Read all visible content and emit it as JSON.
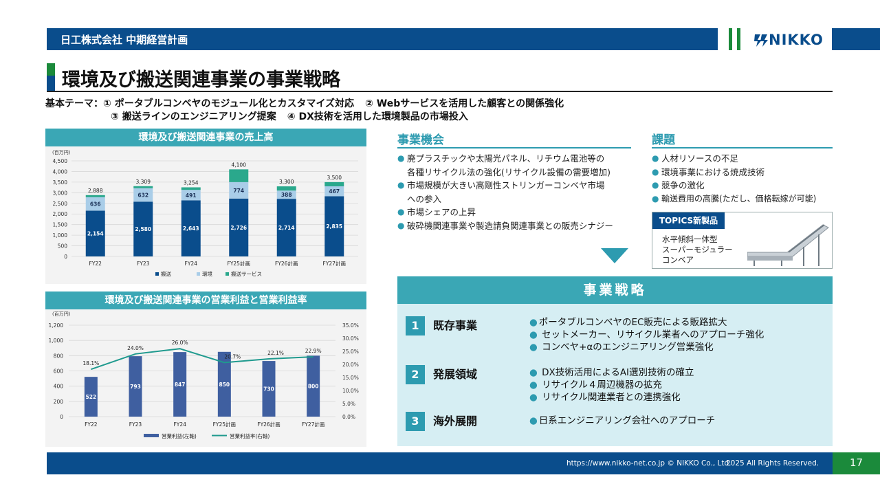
{
  "header": {
    "company": "日工株式会社 中期経営計画",
    "logo_text": "NIKKO"
  },
  "page": {
    "title": "環境及び搬送関連事業の事業戦略"
  },
  "theme": {
    "label": "基本テーマ：",
    "items": [
      "① ポータブルコンベヤのモジュール化とカスタマイズ対応",
      "② Webサービスを活用した顧客との関係強化",
      "③ 搬送ラインのエンジニアリング提案",
      "④ DX技術を活用した環境製品の市場投入"
    ]
  },
  "sales_panel": {
    "title": "環境及び搬送関連事業の売上高",
    "chart_data": {
      "type": "bar",
      "stacked": true,
      "unit_label": "(百万円)",
      "categories": [
        "FY22",
        "FY23",
        "FY24",
        "FY25計画",
        "FY26計画",
        "FY27計画"
      ],
      "series": [
        {
          "name": "搬送",
          "color": "#0a4d8c",
          "values": [
            2154,
            2580,
            2643,
            2726,
            2714,
            2835
          ]
        },
        {
          "name": "環境",
          "color": "#a9cde8",
          "values": [
            636,
            632,
            491,
            774,
            388,
            467
          ]
        },
        {
          "name": "搬送サービス",
          "color": "#2aa88c",
          "values": [
            98,
            97,
            120,
            600,
            198,
            198
          ]
        }
      ],
      "series_labels": [
        [
          "2,154",
          "2,580",
          "2,643",
          "2,726",
          "2,714",
          "2,835"
        ],
        [
          "636",
          "632",
          "491",
          "774",
          "388",
          "467"
        ],
        []
      ],
      "totals": [
        "2,888",
        "3,309",
        "3,254",
        "4,100",
        "3,300",
        "3,500"
      ],
      "ylim": [
        0,
        4500
      ],
      "yticks": [
        "0",
        "500",
        "1,000",
        "1,500",
        "2,000",
        "2,500",
        "3,000",
        "3,500",
        "4,000",
        "4,500"
      ],
      "grid": true,
      "legend_position": "bottom"
    }
  },
  "profit_panel": {
    "title": "環境及び搬送関連事業の営業利益と営業利益率",
    "chart_data": {
      "type": "bar",
      "unit_label": "(百万円)",
      "categories": [
        "FY22",
        "FY23",
        "FY24",
        "FY25計画",
        "FY26計画",
        "FY27計画"
      ],
      "series": [
        {
          "name": "営業利益(左軸)",
          "type": "bar",
          "color": "#3f5fa0",
          "values": [
            522,
            793,
            847,
            850,
            730,
            800
          ]
        },
        {
          "name": "営業利益率(右軸)",
          "type": "line",
          "color": "#1f9a8e",
          "values": [
            18.1,
            24.0,
            26.0,
            20.7,
            22.1,
            22.9
          ]
        }
      ],
      "bar_labels": [
        "522",
        "793",
        "847",
        "850",
        "730",
        "800"
      ],
      "line_labels": [
        "18.1%",
        "24.0%",
        "26.0%",
        "20.7%",
        "22.1%",
        "22.9%"
      ],
      "ylim": [
        0,
        1200
      ],
      "yticks": [
        "0",
        "200",
        "400",
        "600",
        "800",
        "1,000",
        "1,200"
      ],
      "y2lim": [
        0,
        35
      ],
      "y2ticks": [
        "0.0%",
        "5.0%",
        "10.0%",
        "15.0%",
        "20.0%",
        "25.0%",
        "30.0%",
        "35.0%"
      ],
      "grid": true,
      "legend_position": "bottom"
    }
  },
  "opportunity": {
    "title": "事業機会",
    "items": [
      "廃プラスチックや太陽光パネル、リチウム電池等の\n各種リサイクル法の強化(リサイクル設備の需要増加)",
      "市場規模が大きい高剛性ストリンガーコンベヤ市場\nへの参入",
      "市場シェアの上昇",
      "破砕機関連事業や製造請負関連事業との販売シナジー"
    ]
  },
  "issues": {
    "title": "課題",
    "items": [
      "人材リソースの不足",
      "環境事業における焼成技術",
      "競争の激化",
      "輸送費用の高騰(ただし、価格転嫁が可能)"
    ]
  },
  "topics": {
    "tag": "TOPICS新製品",
    "description": "水平傾斜一体型\nスーパーモジュラー\nコンベア"
  },
  "strategy": {
    "title": "事業戦略",
    "rows": [
      {
        "num": "1",
        "name": "既存事業",
        "items": [
          "ポータブルコンベヤのEC販売による販路拡大",
          "セットメーカー、リサイクル業者へのアプローチ強化",
          "コンベヤ+αのエンジニアリング営業強化"
        ]
      },
      {
        "num": "2",
        "name": "発展領域",
        "items": [
          "DX技術活用によるAI選別技術の確立",
          "リサイクル４周辺機器の拡充",
          "リサイクル関連業者との連携強化"
        ]
      },
      {
        "num": "3",
        "name": "海外展開",
        "items": [
          "日系エンジニアリング会社へのアプローチ"
        ]
      }
    ]
  },
  "footer": {
    "url": "https://www.nikko-net.co.jp © NIKKO Co., Ltd.",
    "rights": "2025 All Rights Reserved.",
    "page_number": "17"
  }
}
